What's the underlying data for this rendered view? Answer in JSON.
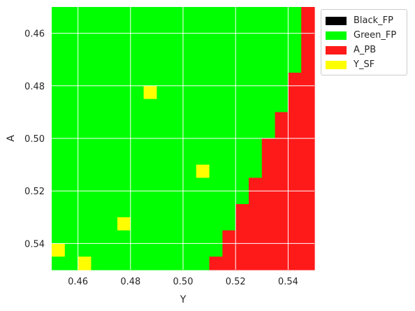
{
  "chart_data": {
    "type": "heatmap",
    "xlabel": "Y",
    "ylabel": "A",
    "xlim": [
      0.45,
      0.55
    ],
    "ylim": [
      0.45,
      0.55
    ],
    "y_inverted": true,
    "grid": true,
    "legend_placement": "outside-upper-right",
    "cell_size": 0.005,
    "x_ticks": [
      "0.46",
      "0.48",
      "0.50",
      "0.52",
      "0.54"
    ],
    "x_tick_values": [
      0.46,
      0.48,
      0.5,
      0.52,
      0.54
    ],
    "y_ticks": [
      "0.46",
      "0.48",
      "0.50",
      "0.52",
      "0.54"
    ],
    "y_tick_values": [
      0.46,
      0.48,
      0.5,
      0.52,
      0.54
    ],
    "categories": [
      {
        "key": "Black_FP",
        "label": "Black_FP",
        "color": "#000000"
      },
      {
        "key": "Green_FP",
        "label": "Green_FP",
        "color": "#00ff00"
      },
      {
        "key": "A_PB",
        "label": "A_PB",
        "color": "#ff1a1a"
      },
      {
        "key": "Y_SF",
        "label": "Y_SF",
        "color": "#ffff00"
      }
    ],
    "default_category": "Green_FP",
    "a_pb_boundary": [
      {
        "a_from": 0.45,
        "a_to": 0.465,
        "y_from": 0.545
      },
      {
        "a_from": 0.465,
        "a_to": 0.475,
        "y_from": 0.545
      },
      {
        "a_from": 0.475,
        "a_to": 0.485,
        "y_from": 0.54
      },
      {
        "a_from": 0.485,
        "a_to": 0.49,
        "y_from": 0.54
      },
      {
        "a_from": 0.49,
        "a_to": 0.495,
        "y_from": 0.535
      },
      {
        "a_from": 0.495,
        "a_to": 0.5,
        "y_from": 0.535
      },
      {
        "a_from": 0.5,
        "a_to": 0.515,
        "y_from": 0.53
      },
      {
        "a_from": 0.515,
        "a_to": 0.525,
        "y_from": 0.525
      },
      {
        "a_from": 0.525,
        "a_to": 0.53,
        "y_from": 0.52
      },
      {
        "a_from": 0.53,
        "a_to": 0.535,
        "y_from": 0.52
      },
      {
        "a_from": 0.535,
        "a_to": 0.545,
        "y_from": 0.515
      },
      {
        "a_from": 0.545,
        "a_to": 0.55,
        "y_from": 0.51
      }
    ],
    "y_sf_cells": [
      {
        "y": 0.485,
        "a": 0.48
      },
      {
        "y": 0.505,
        "a": 0.51
      },
      {
        "y": 0.475,
        "a": 0.53
      },
      {
        "y": 0.45,
        "a": 0.54
      },
      {
        "y": 0.46,
        "a": 0.545
      }
    ],
    "colors": {
      "grid": "#ffffff",
      "text": "#262626",
      "background": "#ffffff"
    }
  }
}
